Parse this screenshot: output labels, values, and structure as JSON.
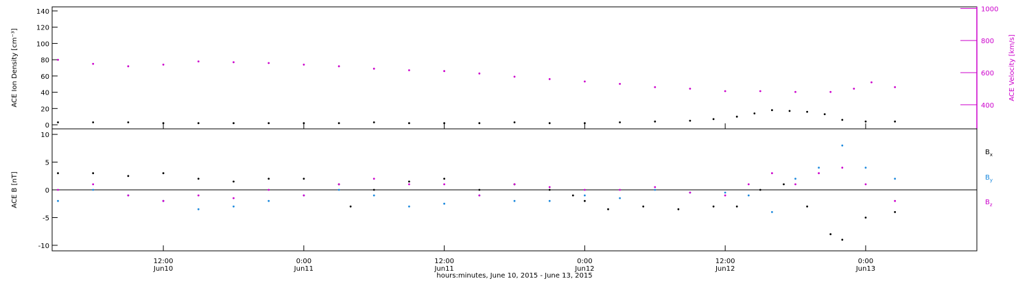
{
  "title": "",
  "xlabel": "hours:minutes, June 10, 2015 - June 13, 2015",
  "x_ticks": [
    {
      "time": "12:00",
      "date": "Jun10",
      "hour": 12
    },
    {
      "time": "0:00",
      "date": "Jun11",
      "hour": 24
    },
    {
      "time": "12:00",
      "date": "Jun11",
      "hour": 36
    },
    {
      "time": "0:00",
      "date": "Jun12",
      "hour": 48
    },
    {
      "time": "12:00",
      "date": "Jun12",
      "hour": 60
    },
    {
      "time": "0:00",
      "date": "Jun13",
      "hour": 72
    }
  ],
  "chart_data": [
    {
      "type": "scatter",
      "panel": "top",
      "xlim": [
        2.5,
        81.5
      ],
      "ylabel": "ACE Ion Density [cm⁻³]",
      "ylim": [
        -5,
        145
      ],
      "yticks": [
        0,
        20,
        40,
        60,
        80,
        100,
        120,
        140
      ],
      "y2label": "ACE Velocity [km/s]",
      "y2lim": [
        250,
        1010
      ],
      "y2ticks": [
        400,
        600,
        800,
        1000
      ],
      "color_left": "#000000",
      "color_right": "#cc00cc",
      "series": [
        {
          "axis": "left",
          "points": [
            [
              3,
              3
            ],
            [
              6,
              3
            ],
            [
              9,
              3
            ],
            [
              12,
              2
            ],
            [
              15,
              2
            ],
            [
              18,
              2
            ],
            [
              21,
              2
            ],
            [
              24,
              2
            ],
            [
              27,
              2
            ],
            [
              30,
              3
            ],
            [
              33,
              2
            ],
            [
              36,
              2
            ],
            [
              39,
              2
            ],
            [
              42,
              3
            ],
            [
              45,
              2
            ],
            [
              48,
              2
            ],
            [
              51,
              3
            ],
            [
              54,
              4
            ],
            [
              57,
              5
            ],
            [
              59,
              7
            ],
            [
              61,
              10
            ],
            [
              62.5,
              14
            ],
            [
              64,
              18
            ],
            [
              65.5,
              17
            ],
            [
              67,
              16
            ],
            [
              68.5,
              13
            ],
            [
              70,
              6
            ],
            [
              72,
              4
            ],
            [
              74.5,
              4
            ]
          ]
        },
        {
          "axis": "right",
          "points": [
            [
              3,
              680
            ],
            [
              6,
              655
            ],
            [
              9,
              640
            ],
            [
              12,
              650
            ],
            [
              15,
              670
            ],
            [
              18,
              665
            ],
            [
              21,
              660
            ],
            [
              24,
              650
            ],
            [
              27,
              640
            ],
            [
              30,
              625
            ],
            [
              33,
              615
            ],
            [
              36,
              610
            ],
            [
              39,
              595
            ],
            [
              42,
              575
            ],
            [
              45,
              560
            ],
            [
              48,
              545
            ],
            [
              51,
              530
            ],
            [
              54,
              510
            ],
            [
              57,
              500
            ],
            [
              60,
              485
            ],
            [
              63,
              485
            ],
            [
              66,
              480
            ],
            [
              69,
              480
            ],
            [
              71,
              500
            ],
            [
              72.5,
              540
            ],
            [
              74.5,
              510
            ]
          ]
        }
      ]
    },
    {
      "type": "scatter",
      "panel": "bottom",
      "xlim": [
        2.5,
        81.5
      ],
      "ylabel": "ACE B [nT]",
      "ylim": [
        -11,
        11
      ],
      "yticks": [
        -10,
        -5,
        0,
        5,
        10
      ],
      "series": [
        {
          "name": "Bx",
          "color": "#000000",
          "points": [
            [
              3,
              3
            ],
            [
              6,
              3
            ],
            [
              9,
              2.5
            ],
            [
              12,
              3
            ],
            [
              15,
              2
            ],
            [
              18,
              1.5
            ],
            [
              21,
              2
            ],
            [
              24,
              2
            ],
            [
              27,
              1
            ],
            [
              28,
              -3
            ],
            [
              30,
              0
            ],
            [
              33,
              1.5
            ],
            [
              36,
              2
            ],
            [
              39,
              0
            ],
            [
              42,
              1
            ],
            [
              45,
              0
            ],
            [
              47,
              -1
            ],
            [
              48,
              -2
            ],
            [
              50,
              -3.5
            ],
            [
              53,
              -3
            ],
            [
              56,
              -3.5
            ],
            [
              59,
              -3
            ],
            [
              61,
              -3
            ],
            [
              63,
              0
            ],
            [
              65,
              1
            ],
            [
              67,
              -3
            ],
            [
              69,
              -8
            ],
            [
              70,
              -9
            ],
            [
              72,
              -5
            ],
            [
              74.5,
              -4
            ]
          ]
        },
        {
          "name": "By",
          "color": "#1a88dd",
          "points": [
            [
              3,
              -2
            ],
            [
              6,
              0
            ],
            [
              9,
              -1
            ],
            [
              12,
              -2
            ],
            [
              15,
              -3.5
            ],
            [
              18,
              -3
            ],
            [
              21,
              -2
            ],
            [
              24,
              -1
            ],
            [
              27,
              0
            ],
            [
              30,
              -1
            ],
            [
              33,
              -3
            ],
            [
              36,
              -2.5
            ],
            [
              39,
              -1
            ],
            [
              42,
              -2
            ],
            [
              45,
              -2
            ],
            [
              48,
              -1
            ],
            [
              51,
              -1.5
            ],
            [
              54,
              0
            ],
            [
              57,
              -0.5
            ],
            [
              60,
              -0.5
            ],
            [
              62,
              -1
            ],
            [
              64,
              -4
            ],
            [
              66,
              2
            ],
            [
              68,
              4
            ],
            [
              70,
              8
            ],
            [
              72,
              4
            ],
            [
              74.5,
              2
            ]
          ]
        },
        {
          "name": "Bz",
          "color": "#cc00cc",
          "points": [
            [
              3,
              0
            ],
            [
              6,
              1
            ],
            [
              9,
              -1
            ],
            [
              12,
              -2
            ],
            [
              15,
              -1
            ],
            [
              18,
              -1.5
            ],
            [
              21,
              0
            ],
            [
              24,
              -1
            ],
            [
              27,
              1
            ],
            [
              30,
              2
            ],
            [
              33,
              1
            ],
            [
              36,
              1
            ],
            [
              39,
              -1
            ],
            [
              42,
              1
            ],
            [
              45,
              0.5
            ],
            [
              48,
              0
            ],
            [
              51,
              0
            ],
            [
              54,
              0.5
            ],
            [
              57,
              -0.5
            ],
            [
              60,
              -1
            ],
            [
              62,
              1
            ],
            [
              64,
              3
            ],
            [
              66,
              1
            ],
            [
              68,
              3
            ],
            [
              70,
              4
            ],
            [
              72,
              1
            ],
            [
              74.5,
              -2
            ]
          ]
        }
      ]
    }
  ]
}
